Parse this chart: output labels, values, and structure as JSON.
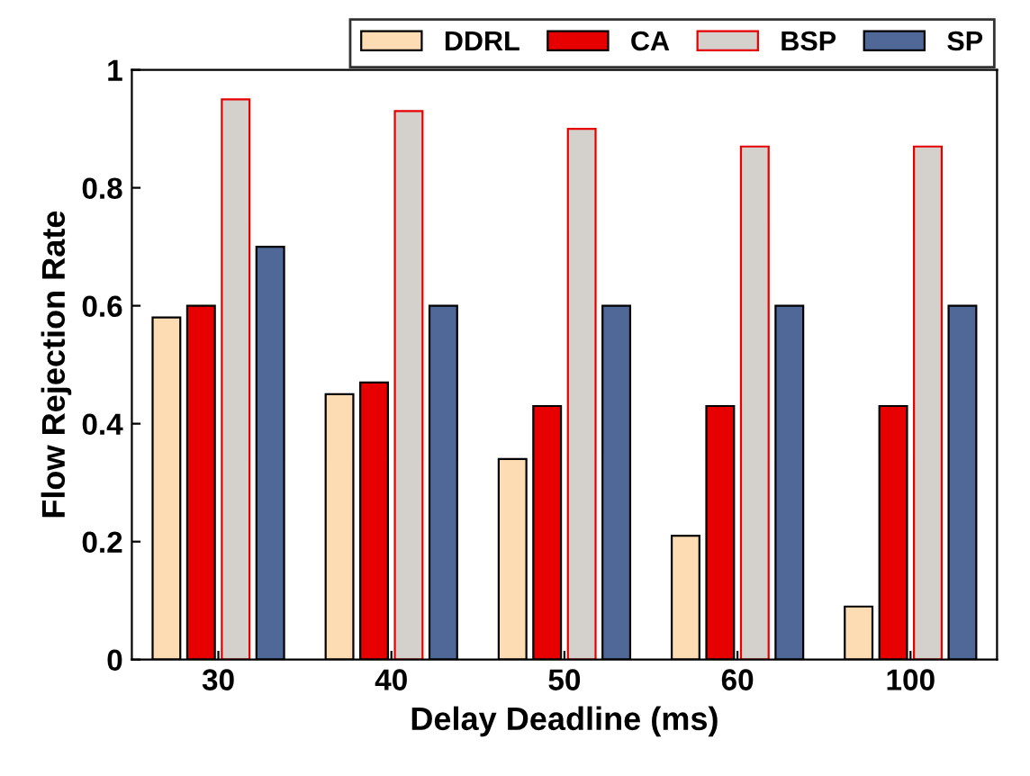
{
  "chart_data": {
    "type": "bar",
    "xlabel": "Delay Deadline (ms)",
    "ylabel": "Flow Rejection Rate",
    "categories": [
      "30",
      "40",
      "50",
      "60",
      "100"
    ],
    "series": [
      {
        "name": "DDRL",
        "color": "#fddcb4",
        "values": [
          0.58,
          0.45,
          0.34,
          0.21,
          0.09
        ]
      },
      {
        "name": "CA",
        "color": "#e60000",
        "values": [
          0.6,
          0.47,
          0.43,
          0.43,
          0.43
        ]
      },
      {
        "name": "BSP",
        "color": "#d4d1cc",
        "values": [
          0.95,
          0.93,
          0.9,
          0.87,
          0.87
        ]
      },
      {
        "name": "SP",
        "color": "#4f6898",
        "values": [
          0.7,
          0.6,
          0.6,
          0.6,
          0.6
        ]
      }
    ],
    "ylim": [
      0,
      1
    ],
    "yticks": [
      0,
      {
        "value": 0.2,
        "label": "0.2"
      },
      {
        "value": 0.4,
        "label": "0.4"
      },
      {
        "value": 0.6,
        "label": "0.6"
      },
      {
        "value": 0.8,
        "label": "0.8"
      },
      1
    ],
    "grid": false,
    "legend": "top right"
  }
}
